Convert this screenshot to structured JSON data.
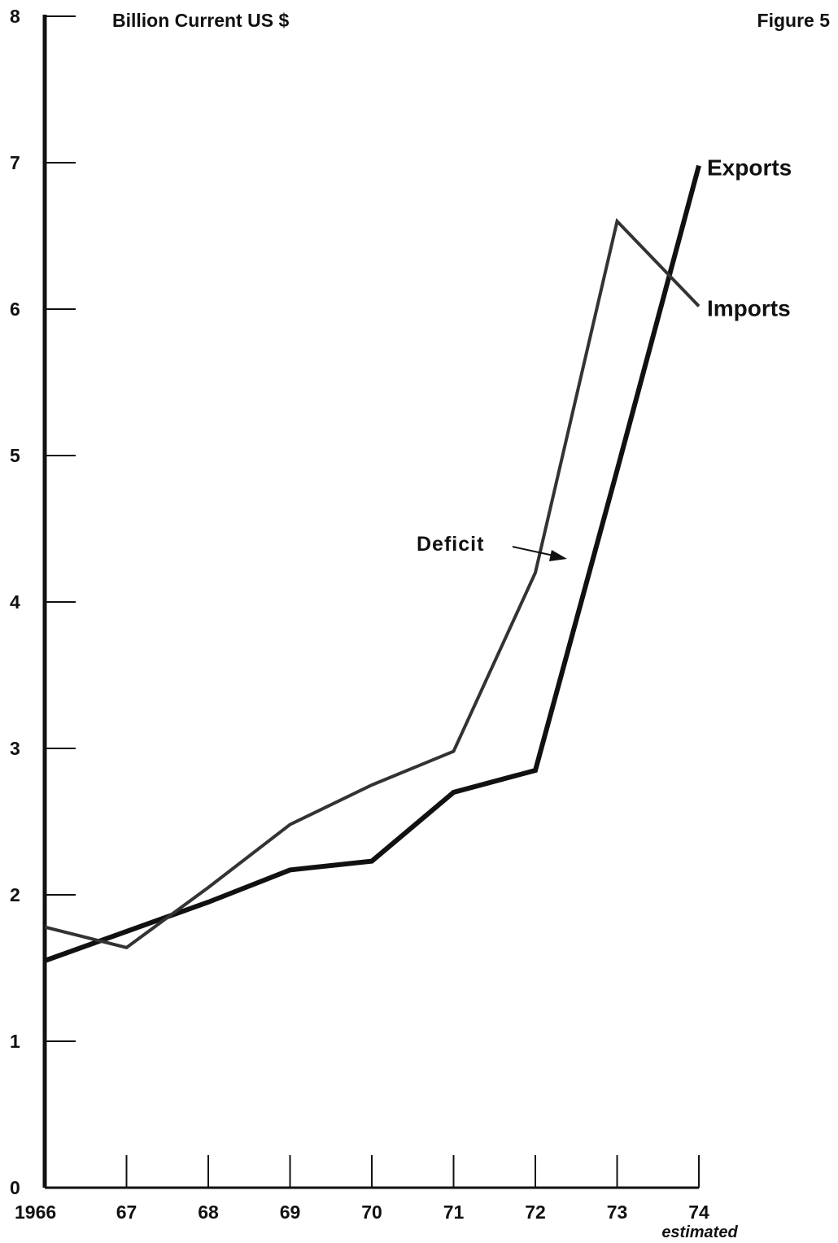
{
  "figure_label": "Figure 5",
  "chart_data": {
    "type": "line",
    "ylabel": "Billion Current US $",
    "ylim": [
      0,
      8
    ],
    "y_ticks": [
      "0",
      "1",
      "2",
      "3",
      "4",
      "5",
      "6",
      "7",
      "8"
    ],
    "categories": [
      "1966",
      "67",
      "68",
      "69",
      "70",
      "71",
      "72",
      "73",
      "74"
    ],
    "x_note": "estimated",
    "grid": false,
    "series": [
      {
        "name": "Exports",
        "values": [
          1.55,
          1.75,
          1.95,
          2.17,
          2.23,
          2.7,
          2.85,
          4.9,
          6.98
        ],
        "color": "#111111"
      },
      {
        "name": "Imports",
        "values": [
          1.78,
          1.64,
          2.05,
          2.48,
          2.75,
          2.98,
          4.2,
          6.6,
          6.02
        ],
        "color": "#333333"
      }
    ],
    "annotation": {
      "text": "Deficit"
    }
  }
}
